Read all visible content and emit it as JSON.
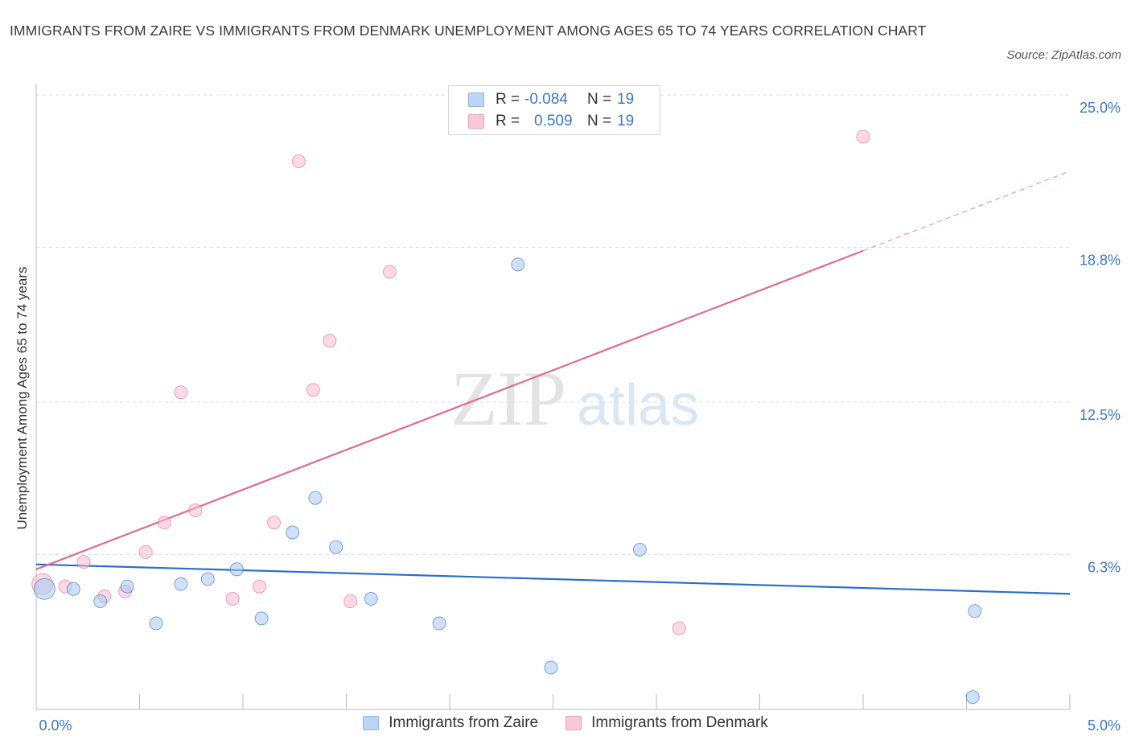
{
  "title": "IMMIGRANTS FROM ZAIRE VS IMMIGRANTS FROM DENMARK UNEMPLOYMENT AMONG AGES 65 TO 74 YEARS CORRELATION CHART",
  "source": "Source: ZipAtlas.com",
  "watermark": {
    "zip": "ZIP",
    "atlas": "atlas"
  },
  "legend": {
    "rows": [
      {
        "r_label": "R = ",
        "r_value": "-0.084",
        "n_label": "N = ",
        "n_value": "19"
      },
      {
        "r_label": "R = ",
        "r_value": "0.509",
        "n_label": "N = ",
        "n_value": "19"
      }
    ]
  },
  "chart_data": {
    "type": "scatter",
    "title": "IMMIGRANTS FROM ZAIRE VS IMMIGRANTS FROM DENMARK UNEMPLOYMENT AMONG AGES 65 TO 74 YEARS CORRELATION CHART",
    "xlabel": "",
    "ylabel": "Unemployment Among Ages 65 to 74 years",
    "xlim": [
      0,
      5
    ],
    "ylim": [
      0,
      25
    ],
    "x_tick_labels": [
      "0.0%",
      "5.0%"
    ],
    "y_ticks": [
      6.3,
      12.5,
      18.8,
      25.0
    ],
    "y_tick_labels": [
      "6.3%",
      "12.5%",
      "18.8%",
      "25.0%"
    ],
    "grid": true,
    "legend_position": "bottom",
    "series": [
      {
        "name": "Immigrants from Zaire",
        "color": "#a9c8f0",
        "line_color": "#2a6fc9",
        "points": [
          [
            0.04,
            4.9
          ],
          [
            0.18,
            4.9
          ],
          [
            0.31,
            4.4
          ],
          [
            0.44,
            5.0
          ],
          [
            0.58,
            3.5
          ],
          [
            0.7,
            5.1
          ],
          [
            0.83,
            5.3
          ],
          [
            0.97,
            5.7
          ],
          [
            1.09,
            3.7
          ],
          [
            1.24,
            7.2
          ],
          [
            1.35,
            8.6
          ],
          [
            1.45,
            6.6
          ],
          [
            1.62,
            4.5
          ],
          [
            1.95,
            3.5
          ],
          [
            2.33,
            18.1
          ],
          [
            2.49,
            1.7
          ],
          [
            2.92,
            6.5
          ],
          [
            4.53,
            0.5
          ],
          [
            4.54,
            4.0
          ]
        ],
        "trend": {
          "x": [
            0.0,
            5.0
          ],
          "y": [
            5.9,
            4.7
          ]
        }
      },
      {
        "name": "Immigrants from Denmark",
        "color": "#f7bccd",
        "line_color": "#e06a92",
        "points": [
          [
            0.03,
            5.1
          ],
          [
            0.14,
            5.0
          ],
          [
            0.23,
            6.0
          ],
          [
            0.33,
            4.6
          ],
          [
            0.43,
            4.8
          ],
          [
            0.53,
            6.4
          ],
          [
            0.62,
            7.6
          ],
          [
            0.7,
            12.9
          ],
          [
            0.77,
            8.1
          ],
          [
            0.95,
            4.5
          ],
          [
            1.08,
            5.0
          ],
          [
            1.15,
            7.6
          ],
          [
            1.27,
            22.3
          ],
          [
            1.34,
            13.0
          ],
          [
            1.42,
            15.0
          ],
          [
            1.52,
            4.4
          ],
          [
            1.71,
            17.8
          ],
          [
            3.11,
            3.3
          ],
          [
            4.0,
            23.3
          ]
        ],
        "trend": {
          "x": [
            0.0,
            5.0
          ],
          "y": [
            5.7,
            21.9
          ],
          "solid_until_x": 4.0
        }
      }
    ]
  }
}
